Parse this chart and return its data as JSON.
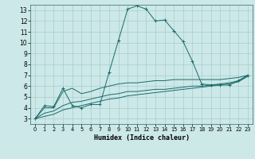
{
  "title": "",
  "xlabel": "Humidex (Indice chaleur)",
  "bg_color": "#cce8e8",
  "grid_color": "#aacccc",
  "line_color": "#1a6b6b",
  "xlim": [
    -0.5,
    23.5
  ],
  "ylim": [
    2.5,
    13.5
  ],
  "xticks": [
    0,
    1,
    2,
    3,
    4,
    5,
    6,
    7,
    8,
    9,
    10,
    11,
    12,
    13,
    14,
    15,
    16,
    17,
    18,
    19,
    20,
    21,
    22,
    23
  ],
  "yticks": [
    3,
    4,
    5,
    6,
    7,
    8,
    9,
    10,
    11,
    12,
    13
  ],
  "series": [
    {
      "x": [
        0,
        1,
        2,
        3,
        4,
        5,
        6,
        7,
        8,
        9,
        10,
        11,
        12,
        13,
        14,
        15,
        16,
        17,
        18,
        19,
        20,
        21,
        22,
        23
      ],
      "y": [
        3.0,
        4.2,
        4.1,
        5.8,
        4.2,
        4.0,
        4.3,
        4.3,
        7.3,
        10.2,
        13.1,
        13.4,
        13.1,
        12.0,
        12.1,
        11.1,
        10.1,
        8.3,
        6.2,
        6.1,
        6.1,
        6.1,
        6.5,
        7.0
      ],
      "marker": "+"
    },
    {
      "x": [
        0,
        1,
        2,
        3,
        4,
        5,
        6,
        7,
        8,
        9,
        10,
        11,
        12,
        13,
        14,
        15,
        16,
        17,
        18,
        19,
        20,
        21,
        22,
        23
      ],
      "y": [
        3.0,
        4.0,
        4.0,
        5.5,
        5.8,
        5.3,
        5.5,
        5.8,
        6.0,
        6.2,
        6.3,
        6.3,
        6.4,
        6.5,
        6.5,
        6.6,
        6.6,
        6.6,
        6.6,
        6.6,
        6.6,
        6.7,
        6.8,
        7.0
      ],
      "marker": null
    },
    {
      "x": [
        0,
        1,
        2,
        3,
        4,
        5,
        6,
        7,
        8,
        9,
        10,
        11,
        12,
        13,
        14,
        15,
        16,
        17,
        18,
        19,
        20,
        21,
        22,
        23
      ],
      "y": [
        3.0,
        3.5,
        3.7,
        4.2,
        4.5,
        4.6,
        4.8,
        5.0,
        5.2,
        5.3,
        5.5,
        5.5,
        5.6,
        5.7,
        5.7,
        5.8,
        5.9,
        6.0,
        6.0,
        6.1,
        6.2,
        6.3,
        6.5,
        7.0
      ],
      "marker": null
    },
    {
      "x": [
        0,
        1,
        2,
        3,
        4,
        5,
        6,
        7,
        8,
        9,
        10,
        11,
        12,
        13,
        14,
        15,
        16,
        17,
        18,
        19,
        20,
        21,
        22,
        23
      ],
      "y": [
        3.0,
        3.2,
        3.4,
        3.8,
        4.0,
        4.2,
        4.4,
        4.6,
        4.8,
        4.9,
        5.1,
        5.2,
        5.3,
        5.4,
        5.5,
        5.6,
        5.7,
        5.8,
        5.9,
        6.0,
        6.1,
        6.2,
        6.4,
        6.9
      ],
      "marker": null
    }
  ]
}
